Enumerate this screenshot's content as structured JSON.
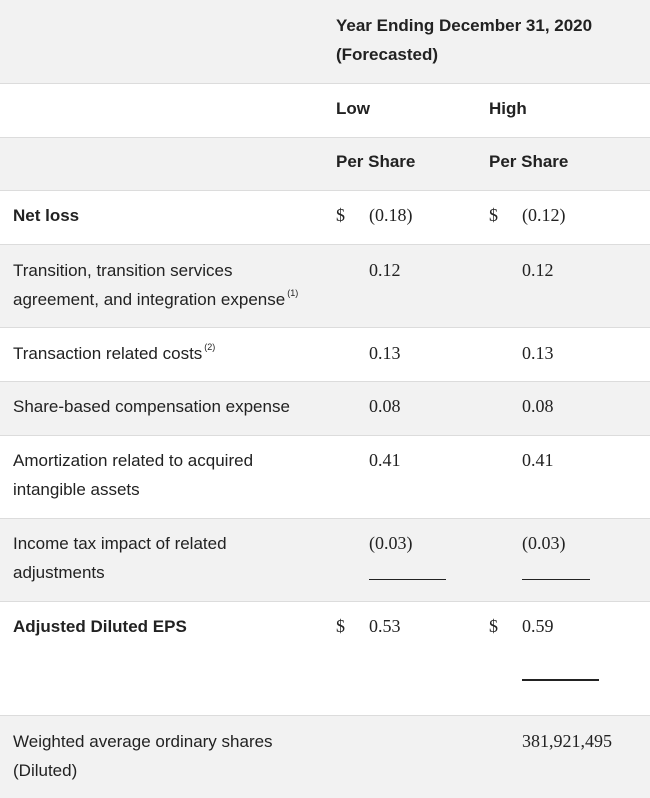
{
  "header": {
    "period_line1": "Year Ending December 31, 2020",
    "period_line2": "(Forecasted)",
    "col_low": "Low",
    "col_high": "High",
    "per_share_low": "Per Share",
    "per_share_high": "Per Share"
  },
  "rows": [
    {
      "label": "Net loss",
      "bold": true,
      "low_dollar": "$",
      "low": "(0.18)",
      "high_dollar": "$",
      "high": "(0.12)"
    },
    {
      "label_line1": "Transition, transition services",
      "label_line2": "agreement, and integration expense",
      "footnote": "(1)",
      "low": "0.12",
      "high": "0.12"
    },
    {
      "label": "Transaction related costs",
      "footnote": "(2)",
      "low": "0.13",
      "high": "0.13"
    },
    {
      "label": "Share-based compensation expense",
      "low": "0.08",
      "high": "0.08"
    },
    {
      "label_line1": "Amortization related to acquired",
      "label_line2": "intangible assets",
      "low": "0.41",
      "high": "0.41"
    },
    {
      "label_line1": "Income tax impact of related",
      "label_line2": "adjustments",
      "low": "(0.03)",
      "high": "(0.03)"
    },
    {
      "label": "Adjusted Diluted EPS",
      "bold": true,
      "low_dollar": "$",
      "low": "0.53",
      "high_dollar": "$",
      "high": "0.59"
    },
    {
      "label_line1": "Weighted average ordinary shares",
      "label_line2": "(Diluted)",
      "high": "381,921,495"
    }
  ],
  "colors": {
    "shade": "#f2f2f2",
    "text": "#222222",
    "border": "#dcdcdc"
  }
}
